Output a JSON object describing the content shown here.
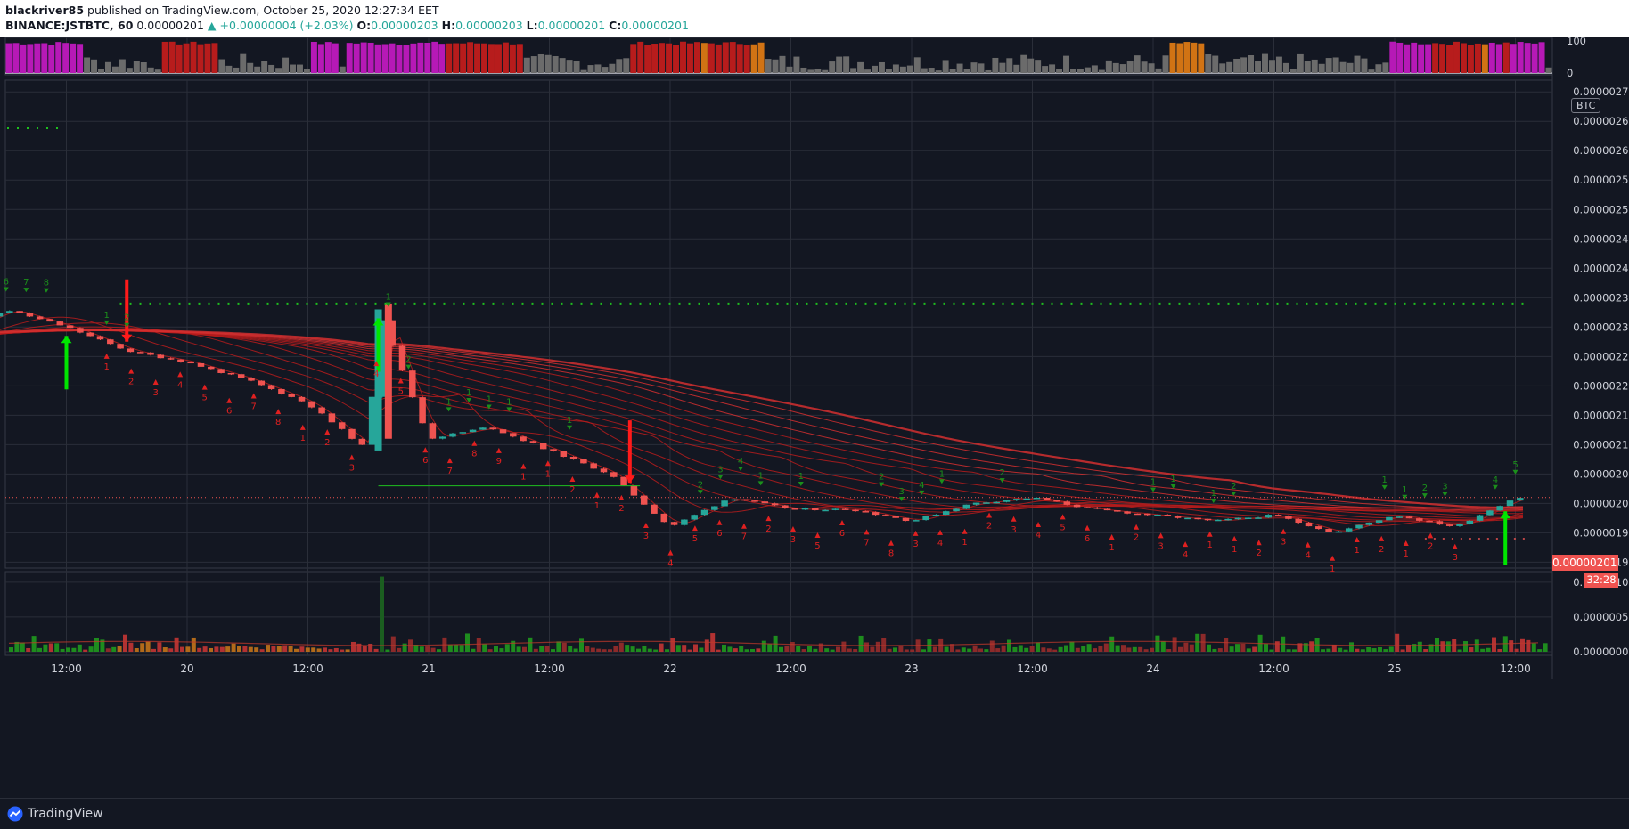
{
  "header": {
    "publisher": "blackriver85",
    "published_text": "published on TradingView.com, October 25, 2020 12:27:34 EET",
    "symbol": "BINANCE:JSTBTC, 60",
    "last": "0.00000201",
    "change": "+0.00000004 (+2.03%)",
    "open_label": "O:",
    "open": "0.00000203",
    "high_label": "H:",
    "high": "0.00000203",
    "low_label": "L:",
    "low": "0.00000201",
    "close_label": "C:",
    "close": "0.00000201"
  },
  "badge": "BTC",
  "price_tag": "0.00000201",
  "countdown": "32:28",
  "footer": {
    "brand": "TradingView"
  },
  "colors": {
    "background": "#131722",
    "grid": "#2a2e39",
    "up": "#26a69a",
    "down": "#ef5350",
    "ribbon": "#b71c1c",
    "signal_green": "#00e600",
    "signal_red": "#ff1a1a",
    "magenta": "#b619b6",
    "orange": "#d17314"
  },
  "chart_data": [
    {
      "type": "bar",
      "pane": "top-oscillator",
      "y_ticks": [
        "100",
        "0"
      ],
      "ylim": [
        0,
        100
      ],
      "color_sequence": [
        {
          "color": "magenta",
          "count": 11
        },
        {
          "color": "gray",
          "count": 11
        },
        {
          "color": "red",
          "count": 8
        },
        {
          "color": "gray",
          "count": 13
        },
        {
          "color": "magenta",
          "count": 4
        },
        {
          "color": "gray",
          "count": 1
        },
        {
          "color": "magenta",
          "count": 14
        },
        {
          "color": "red",
          "count": 11
        },
        {
          "color": "gray",
          "count": 15
        },
        {
          "color": "red",
          "count": 10
        },
        {
          "color": "orange",
          "count": 1
        },
        {
          "color": "red",
          "count": 6
        },
        {
          "color": "orange",
          "count": 2
        },
        {
          "color": "gray",
          "count": 57
        },
        {
          "color": "orange",
          "count": 5
        },
        {
          "color": "gray",
          "count": 26
        },
        {
          "color": "magenta",
          "count": 6
        },
        {
          "color": "red",
          "count": 7
        },
        {
          "color": "orange",
          "count": 1
        },
        {
          "color": "magenta",
          "count": 2
        },
        {
          "color": "red",
          "count": 1
        },
        {
          "color": "magenta",
          "count": 5
        },
        {
          "color": "gray",
          "count": 1
        }
      ]
    },
    {
      "type": "candlestick",
      "pane": "price",
      "y_ticks": [
        "0.00000270",
        "0.00000265",
        "0.00000260",
        "0.00000255",
        "0.00000250",
        "0.00000245",
        "0.00000240",
        "0.00000235",
        "0.00000230",
        "0.00000225",
        "0.00000220",
        "0.00000215",
        "0.00000210",
        "0.00000205",
        "0.00000200",
        "0.00000195",
        "0.00000190"
      ],
      "ylim": [
        1.89e-06,
        2.72e-06
      ],
      "x_ticks": [
        "12:00",
        "20",
        "12:00",
        "21",
        "12:00",
        "22",
        "12:00",
        "23",
        "12:00",
        "24",
        "12:00",
        "25",
        "12:00"
      ],
      "close_path": [
        [
          "19 00:00",
          2.28e-06
        ],
        [
          "19 06:00",
          2.33e-06
        ],
        [
          "19 12:00",
          2.3e-06
        ],
        [
          "19 18:00",
          2.26e-06
        ],
        [
          "20 00:00",
          2.24e-06
        ],
        [
          "20 06:00",
          2.21e-06
        ],
        [
          "20 12:00",
          2.17e-06
        ],
        [
          "20 18:00",
          2.09e-06
        ],
        [
          "20 19:00",
          2.33e-06
        ],
        [
          "21 00:00",
          2.11e-06
        ],
        [
          "21 06:00",
          2.13e-06
        ],
        [
          "21 12:00",
          2.09e-06
        ],
        [
          "21 18:00",
          2.05e-06
        ],
        [
          "22 00:00",
          1.96e-06
        ],
        [
          "22 06:00",
          2.01e-06
        ],
        [
          "22 12:00",
          1.99e-06
        ],
        [
          "22 18:00",
          1.99e-06
        ],
        [
          "23 00:00",
          1.97e-06
        ],
        [
          "23 06:00",
          2e-06
        ],
        [
          "23 12:00",
          2.01e-06
        ],
        [
          "23 18:00",
          1.99e-06
        ],
        [
          "24 00:00",
          1.98e-06
        ],
        [
          "24 06:00",
          1.97e-06
        ],
        [
          "24 12:00",
          1.98e-06
        ],
        [
          "24 18:00",
          1.95e-06
        ],
        [
          "25 00:00",
          1.98e-06
        ],
        [
          "25 06:00",
          1.96e-06
        ],
        [
          "25 12:00",
          2.01e-06
        ]
      ],
      "resistance_level": 2.34e-06,
      "support_level": 1.94e-06,
      "last_price": 2.01e-06,
      "signal_arrows": [
        {
          "x": "19 12:00",
          "dir": "up",
          "color": "green"
        },
        {
          "x": "19 18:00",
          "dir": "down",
          "color": "red"
        },
        {
          "x": "20 19:00",
          "dir": "up",
          "color": "green"
        },
        {
          "x": "21 20:00",
          "dir": "down",
          "color": "red"
        },
        {
          "x": "25 11:00",
          "dir": "up",
          "color": "green"
        }
      ],
      "td_counts": {
        "green_above": [
          "3",
          "4",
          "5",
          "6",
          "7",
          "8",
          "1",
          "2",
          "1",
          "2",
          "1",
          "1",
          "1",
          "1",
          "1",
          "2",
          "3",
          "4",
          "1",
          "1",
          "2",
          "3",
          "4",
          "1",
          "2",
          "1",
          "1",
          "1",
          "2",
          "1",
          "1",
          "2",
          "3",
          "4",
          "5"
        ],
        "red_below": [
          "1",
          "2",
          "3",
          "4",
          "5",
          "6",
          "7",
          "8",
          "1",
          "2",
          "3",
          "4",
          "5",
          "6",
          "7",
          "8",
          "9",
          "1",
          "1",
          "2",
          "1",
          "2",
          "3",
          "4",
          "5",
          "6",
          "7",
          "2",
          "3",
          "5",
          "6",
          "7",
          "8",
          "3",
          "4",
          "1",
          "2",
          "3",
          "4",
          "5",
          "6",
          "1",
          "2",
          "3",
          "4",
          "1",
          "1",
          "2",
          "3",
          "4",
          "1",
          "1",
          "2",
          "1",
          "2",
          "3"
        ]
      }
    },
    {
      "type": "bar",
      "pane": "volume",
      "y_ticks": [
        "0.00000100",
        "0.00000050",
        "0.00000000"
      ],
      "ylim": [
        0,
        1.1e-06
      ]
    }
  ]
}
